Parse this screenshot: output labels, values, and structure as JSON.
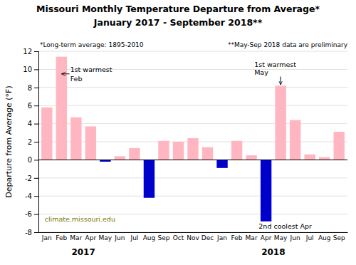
{
  "chart_data": {
    "type": "bar",
    "title": "Missouri Monthly Temperature Departure from Average*",
    "subtitle": "January 2017 - September 2018**",
    "ylabel": "Departure from Average (°F)",
    "notes": [
      "*Long-term average: 1895-2010",
      "**May-Sep 2018 data are preliminary"
    ],
    "watermark": "climate.missouri.edu",
    "categories": [
      "Jan",
      "Feb",
      "Mar",
      "Apr",
      "May",
      "Jun",
      "Jul",
      "Aug",
      "Sep",
      "Oct",
      "Nov",
      "Dec",
      "Jan",
      "Feb",
      "Mar",
      "Apr",
      "May",
      "Jun",
      "Jul",
      "Aug",
      "Sep"
    ],
    "year_labels": [
      "2017",
      "2018"
    ],
    "values": [
      5.8,
      11.4,
      4.7,
      3.7,
      -0.2,
      0.4,
      1.3,
      -4.2,
      2.1,
      2.0,
      2.4,
      1.4,
      -0.9,
      2.1,
      0.5,
      -6.8,
      8.2,
      4.4,
      0.6,
      0.3,
      3.1
    ],
    "colors": [
      "#ffb6c1",
      "#ffb6c1",
      "#ffb6c1",
      "#ffb6c1",
      "#0000cd",
      "#ffb6c1",
      "#ffb6c1",
      "#0000cd",
      "#ffb6c1",
      "#ffb6c1",
      "#ffb6c1",
      "#ffb6c1",
      "#0000cd",
      "#ffb6c1",
      "#ffb6c1",
      "#0000cd",
      "#ffb6c1",
      "#ffb6c1",
      "#ffb6c1",
      "#ffb6c1",
      "#ffb6c1"
    ],
    "annotations": [
      "1st warmest",
      "Feb",
      "1st warmest",
      "May",
      "2nd coolest Apr"
    ],
    "ylim": [
      -8.0,
      12.0
    ],
    "yticks": [
      -8,
      -6,
      -4,
      -2,
      0,
      2,
      4,
      6,
      8,
      10,
      12
    ],
    "grid": true
  }
}
